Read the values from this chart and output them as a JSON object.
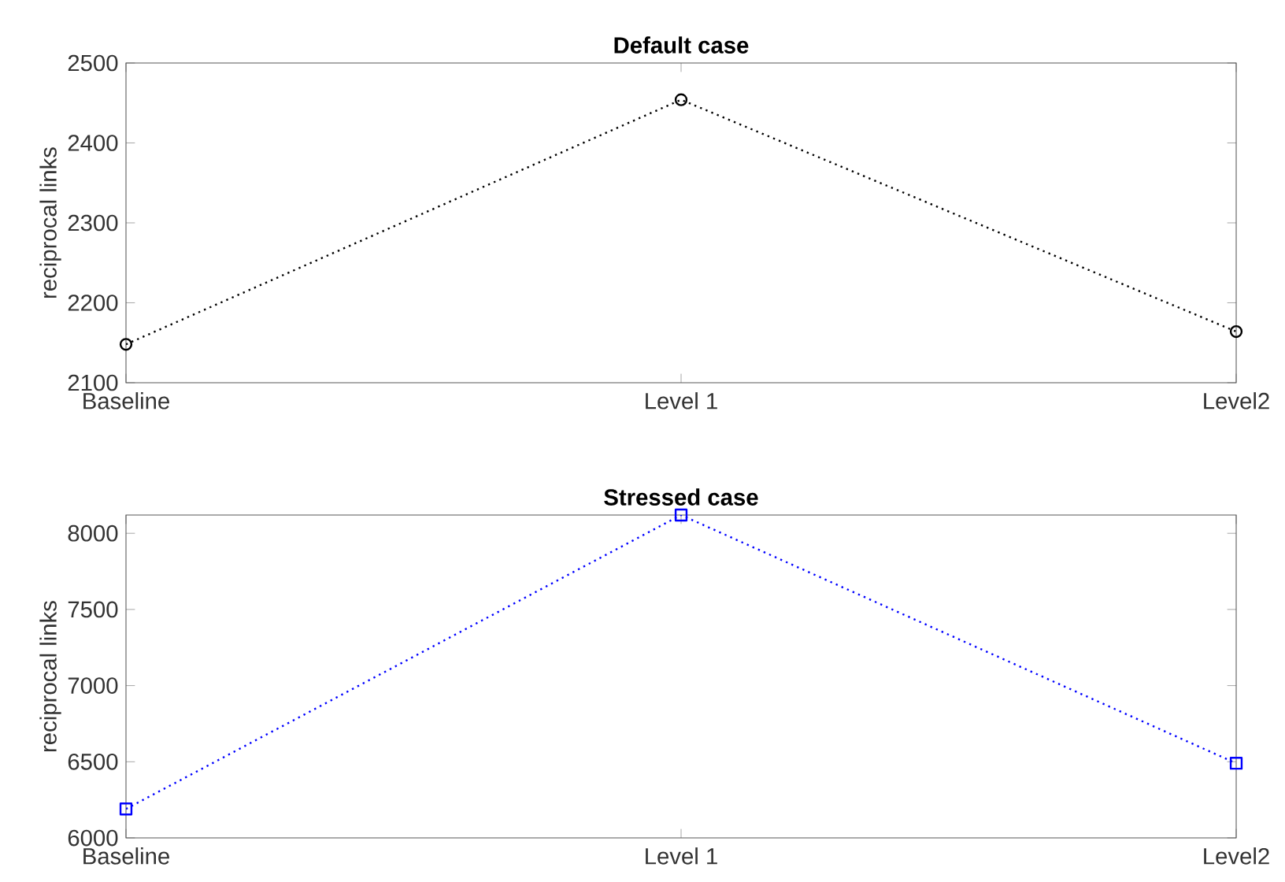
{
  "chart_data": [
    {
      "type": "line",
      "title": "Default case",
      "ylabel": "reciprocal links",
      "categories": [
        "Baseline",
        "Level 1",
        "Level2"
      ],
      "series": [
        {
          "color": "#000000",
          "values": [
            2148,
            2454,
            2164
          ]
        }
      ],
      "ylim": [
        2100,
        2500
      ],
      "yticks": [
        2100,
        2200,
        2300,
        2400,
        2500
      ],
      "marker": "circle",
      "line_style": "dotted"
    },
    {
      "type": "line",
      "title": "Stressed case",
      "ylabel": "reciprocal links",
      "categories": [
        "Baseline",
        "Level 1",
        "Level2"
      ],
      "series": [
        {
          "color": "#0000ff",
          "values": [
            6190,
            8120,
            6490
          ]
        }
      ],
      "ylim": [
        6000,
        8120
      ],
      "yticks": [
        6000,
        6500,
        7000,
        7500,
        8000
      ],
      "marker": "square",
      "line_style": "dotted"
    }
  ]
}
